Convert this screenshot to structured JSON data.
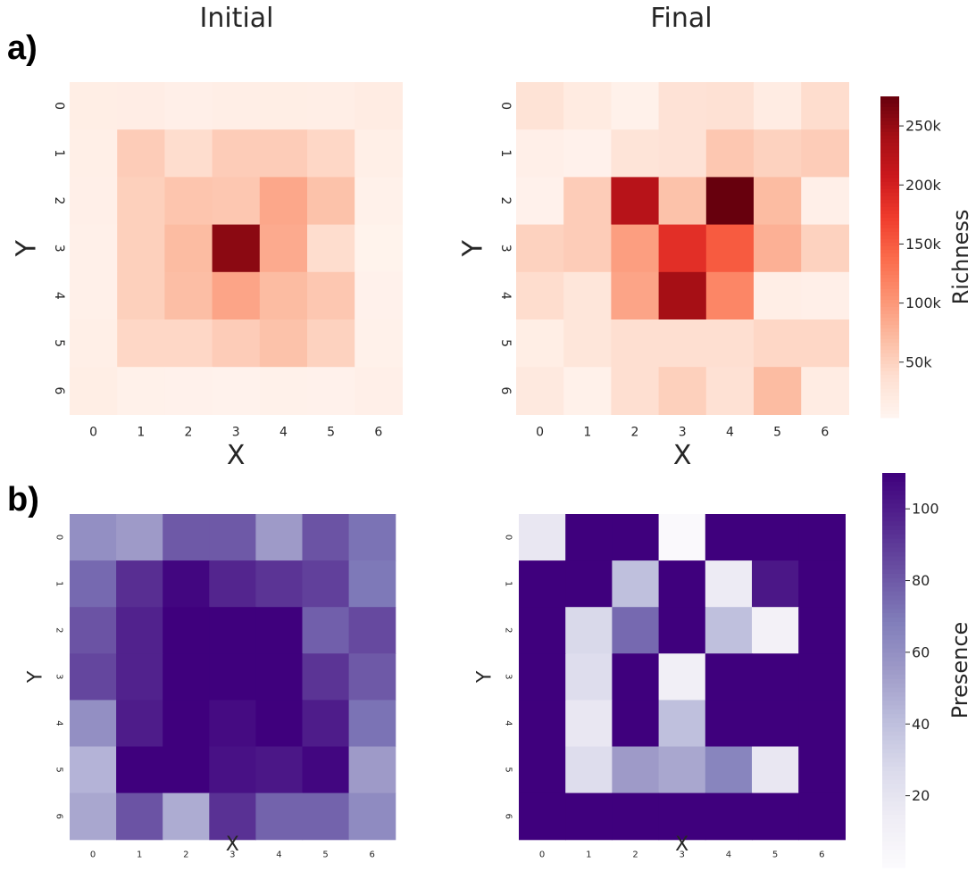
{
  "column_titles": [
    "Initial",
    "Final"
  ],
  "panel_labels": [
    "a)",
    "b)"
  ],
  "chart_data": [
    {
      "type": "heatmap",
      "panel": "a)",
      "title": "Initial",
      "xlabel": "X",
      "ylabel": "Y",
      "x_ticks": [
        "0",
        "1",
        "2",
        "3",
        "4",
        "5",
        "6"
      ],
      "y_ticks": [
        "0",
        "1",
        "2",
        "3",
        "4",
        "5",
        "6"
      ],
      "colormap": "Reds",
      "vmin": 3000,
      "vmax": 275000,
      "colorbar_label": "Richness",
      "z": [
        [
          15000,
          16000,
          12000,
          14000,
          15000,
          14000,
          18000
        ],
        [
          13000,
          55000,
          40000,
          55000,
          55000,
          45000,
          13000
        ],
        [
          12000,
          52000,
          62000,
          60000,
          88000,
          65000,
          10000
        ],
        [
          11000,
          52000,
          70000,
          255000,
          85000,
          40000,
          7000
        ],
        [
          11000,
          52000,
          68000,
          90000,
          70000,
          60000,
          9000
        ],
        [
          13000,
          45000,
          45000,
          55000,
          65000,
          50000,
          10000
        ],
        [
          15000,
          10000,
          9000,
          8000,
          10000,
          9000,
          12000
        ]
      ]
    },
    {
      "type": "heatmap",
      "panel": "a)",
      "title": "Final",
      "xlabel": "X",
      "ylabel": "Y",
      "x_ticks": [
        "0",
        "1",
        "2",
        "3",
        "4",
        "5",
        "6"
      ],
      "y_ticks": [
        "0",
        "1",
        "2",
        "3",
        "4",
        "5",
        "6"
      ],
      "colormap": "Reds",
      "vmin": 3000,
      "vmax": 275000,
      "colorbar_label": "Richness",
      "colorbar_ticks": [
        "50k",
        "100k",
        "150k",
        "200k",
        "250k"
      ],
      "colorbar_tick_values": [
        50000,
        100000,
        150000,
        200000,
        250000
      ],
      "z": [
        [
          32000,
          20000,
          10000,
          33000,
          35000,
          18000,
          40000
        ],
        [
          12000,
          9000,
          30000,
          33000,
          60000,
          50000,
          55000
        ],
        [
          9000,
          55000,
          225000,
          65000,
          275000,
          70000,
          12000
        ],
        [
          50000,
          55000,
          95000,
          185000,
          150000,
          80000,
          50000
        ],
        [
          40000,
          28000,
          90000,
          240000,
          115000,
          14000,
          12000
        ],
        [
          15000,
          28000,
          38000,
          38000,
          38000,
          45000,
          45000
        ],
        [
          22000,
          10000,
          38000,
          52000,
          35000,
          70000,
          18000
        ]
      ]
    },
    {
      "type": "heatmap",
      "panel": "b)",
      "title": "",
      "xlabel": "X",
      "ylabel": "Y",
      "x_ticks": [
        "0",
        "1",
        "2",
        "3",
        "4",
        "5",
        "6"
      ],
      "y_ticks": [
        "0",
        "1",
        "2",
        "3",
        "4",
        "5",
        "6"
      ],
      "colormap": "Purples",
      "vmin": 0,
      "vmax": 110,
      "colorbar_label": "Presence",
      "z": [
        [
          60,
          55,
          80,
          80,
          55,
          82,
          72
        ],
        [
          75,
          94,
          108,
          97,
          92,
          88,
          70
        ],
        [
          82,
          98,
          110,
          110,
          110,
          78,
          85
        ],
        [
          86,
          98,
          110,
          110,
          110,
          92,
          80
        ],
        [
          60,
          100,
          110,
          106,
          110,
          100,
          72
        ],
        [
          45,
          110,
          110,
          104,
          102,
          108,
          55
        ],
        [
          50,
          82,
          48,
          93,
          77,
          77,
          62
        ]
      ]
    },
    {
      "type": "heatmap",
      "panel": "b)",
      "title": "",
      "xlabel": "X",
      "ylabel": "Y",
      "x_ticks": [
        "0",
        "1",
        "2",
        "3",
        "4",
        "5",
        "6"
      ],
      "y_ticks": [
        "0",
        "1",
        "2",
        "3",
        "4",
        "5",
        "6"
      ],
      "colormap": "Purples",
      "vmin": 0,
      "vmax": 110,
      "colorbar_label": "Presence",
      "colorbar_ticks": [
        "20",
        "40",
        "60",
        "80",
        "100"
      ],
      "colorbar_tick_values": [
        20,
        40,
        60,
        80,
        100
      ],
      "z": [
        [
          18,
          110,
          110,
          2,
          110,
          110,
          110
        ],
        [
          110,
          110,
          40,
          110,
          15,
          102,
          110
        ],
        [
          110,
          28,
          75,
          110,
          40,
          10,
          110
        ],
        [
          110,
          25,
          110,
          12,
          110,
          110,
          110
        ],
        [
          110,
          18,
          110,
          40,
          110,
          110,
          110
        ],
        [
          110,
          25,
          55,
          50,
          65,
          18,
          110
        ],
        [
          110,
          110,
          110,
          110,
          110,
          110,
          110
        ]
      ]
    }
  ]
}
